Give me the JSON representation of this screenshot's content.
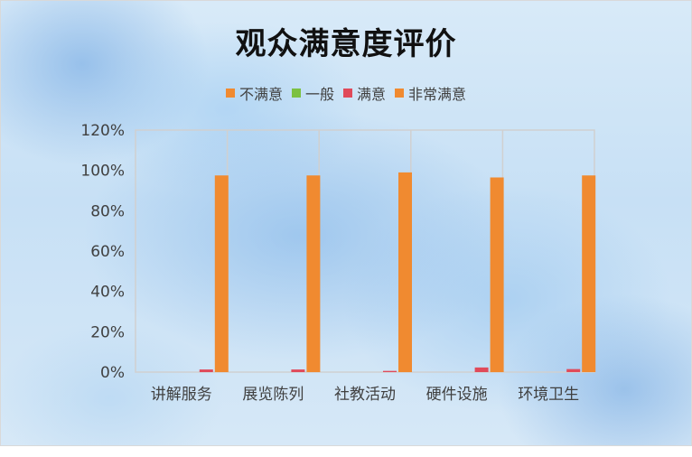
{
  "chart_data": {
    "type": "bar",
    "title": "观众满意度评价",
    "xlabel": "",
    "ylabel": "",
    "categories": [
      "讲解服务",
      "展览陈列",
      "社教活动",
      "硬件设施",
      "环境卫生"
    ],
    "series": [
      {
        "name": "不满意",
        "color": "#f08a30",
        "values": [
          0,
          0,
          0,
          0,
          0
        ]
      },
      {
        "name": "一般",
        "color": "#7cc142",
        "values": [
          0,
          0,
          0,
          0,
          0
        ]
      },
      {
        "name": "满意",
        "color": "#e04a5a",
        "values": [
          0.013,
          0.013,
          0.006,
          0.023,
          0.015
        ]
      },
      {
        "name": "非常满意",
        "color": "#f08a30",
        "values": [
          0.975,
          0.975,
          0.99,
          0.965,
          0.975
        ]
      }
    ],
    "ylim": [
      0,
      1.2
    ],
    "y_ticks": [
      "0%",
      "20%",
      "40%",
      "60%",
      "80%",
      "100%",
      "120%"
    ],
    "legend_position": "top",
    "grid": "vertical category gridlines"
  }
}
